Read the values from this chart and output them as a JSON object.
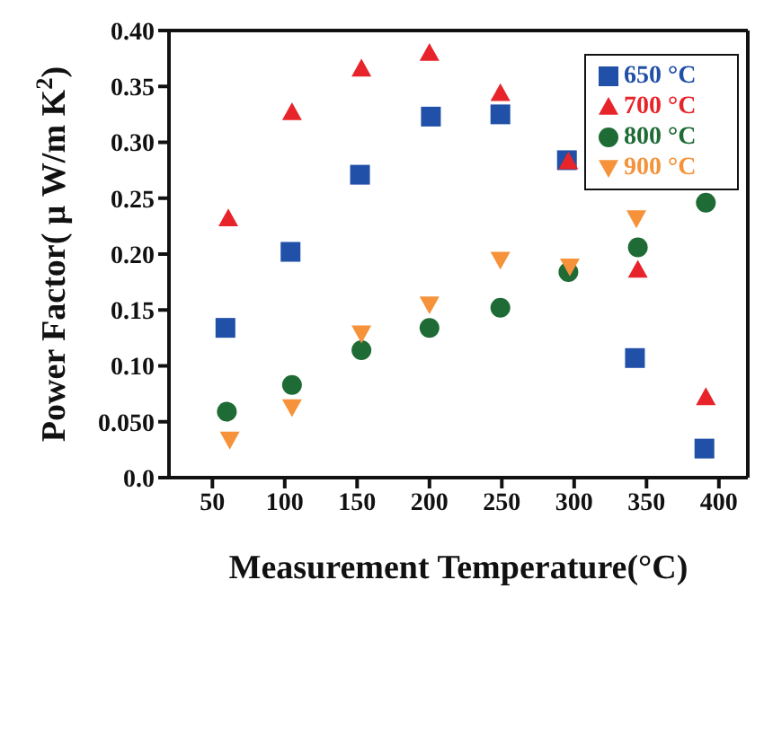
{
  "chart_data": {
    "type": "scatter",
    "xlabel": "Measurement Temperature(°C)",
    "ylabel": "Power Factor( μ W/m K$^{2}$)",
    "xlim": [
      20,
      420
    ],
    "xticks": [
      50,
      100,
      150,
      200,
      250,
      300,
      350,
      400
    ],
    "ylim": [
      0,
      0.4
    ],
    "yticks": [
      {
        "value": 0,
        "label": "0.0"
      },
      {
        "value": 0.05,
        "label": "0.050"
      },
      {
        "value": 0.1,
        "label": "0.10"
      },
      {
        "value": 0.15,
        "label": "0.15"
      },
      {
        "value": 0.2,
        "label": "0.20"
      },
      {
        "value": 0.25,
        "label": "0.25"
      },
      {
        "value": 0.3,
        "label": "0.30"
      },
      {
        "value": 0.35,
        "label": "0.35"
      },
      {
        "value": 0.4,
        "label": "0.40"
      }
    ],
    "legend": "top right",
    "series": [
      {
        "name": "650 °C",
        "color": "#2050a8",
        "marker": "square",
        "x": [
          59,
          104,
          152,
          201,
          249,
          295,
          342,
          390
        ],
        "values": [
          0.134,
          0.202,
          0.271,
          0.323,
          0.325,
          0.284,
          0.107,
          0.026
        ]
      },
      {
        "name": "700 °C",
        "color": "#e8242b",
        "marker": "triangle",
        "x": [
          61,
          105,
          153,
          200,
          249,
          296,
          344,
          391
        ],
        "values": [
          0.232,
          0.327,
          0.366,
          0.38,
          0.344,
          0.283,
          0.186,
          0.072
        ]
      },
      {
        "name": "800 °C",
        "color": "#1e6b35",
        "marker": "circle",
        "x": [
          60,
          105,
          153,
          200,
          249,
          296,
          344,
          391
        ],
        "values": [
          0.059,
          0.083,
          0.114,
          0.134,
          0.152,
          0.184,
          0.206,
          0.246
        ]
      },
      {
        "name": "900 °C",
        "color": "#f5923a",
        "marker": "triangle-down",
        "x": [
          62,
          105,
          153,
          200,
          249,
          297,
          343
        ],
        "values": [
          0.034,
          0.063,
          0.129,
          0.155,
          0.195,
          0.189,
          0.232
        ]
      }
    ]
  }
}
